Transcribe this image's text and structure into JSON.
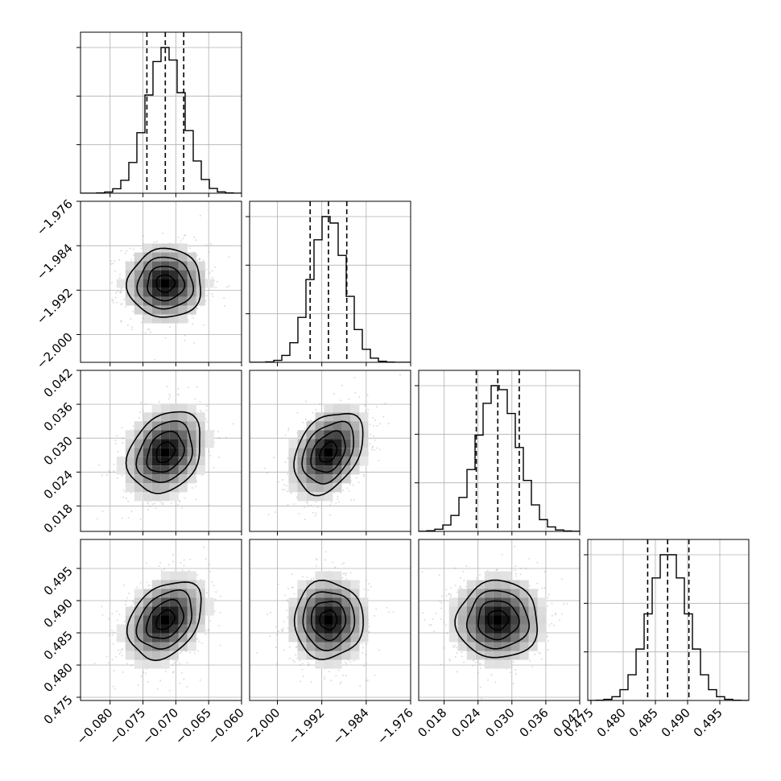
{
  "chart_data": {
    "type": "corner",
    "parameters": [
      {
        "mean": -0.0716,
        "sd": 0.0028,
        "range": [
          -0.0845,
          -0.06
        ],
        "ticks": [
          -0.08,
          -0.075,
          -0.07,
          -0.065,
          -0.06
        ],
        "tick_labels": [
          "−0.080",
          "−0.075",
          "−0.070",
          "−0.065",
          "−0.060"
        ],
        "quantiles": [
          -0.0744,
          -0.0716,
          -0.0688
        ]
      },
      {
        "mean": -1.9908,
        "sd": 0.0031,
        "range": [
          -2.005,
          -1.976
        ],
        "ticks": [
          -2.0,
          -1.992,
          -1.984,
          -1.976
        ],
        "tick_labels": [
          "−2.000",
          "−1.992",
          "−1.984",
          "−1.976"
        ],
        "quantiles": [
          -1.9941,
          -1.9908,
          -1.9875
        ]
      },
      {
        "mean": 0.0275,
        "sd": 0.0036,
        "range": [
          0.0135,
          0.042
        ],
        "ticks": [
          0.018,
          0.024,
          0.03,
          0.036,
          0.042
        ],
        "tick_labels": [
          "0.018",
          "0.024",
          "0.030",
          "0.036",
          "0.042"
        ],
        "quantiles": [
          0.0237,
          0.0275,
          0.0313
        ]
      },
      {
        "mean": 0.487,
        "sd": 0.003,
        "range": [
          0.4745,
          0.4995
        ],
        "ticks": [
          0.475,
          0.48,
          0.485,
          0.49,
          0.495
        ],
        "tick_labels": [
          "0.475",
          "0.480",
          "0.485",
          "0.490",
          "0.495"
        ],
        "quantiles": [
          0.4838,
          0.4869,
          0.4902
        ]
      }
    ],
    "correlations": [
      [
        1,
        0,
        0.25,
        0.32
      ],
      [
        0,
        1,
        0.35,
        0
      ],
      [
        0.25,
        0.35,
        1,
        0
      ],
      [
        0.32,
        0,
        0,
        1
      ]
    ],
    "contour_levels_sigma": [
      0.5,
      1.0,
      1.5,
      2.0
    ],
    "histogram_bins": 20,
    "grid": true,
    "colors": {
      "line": "#000000",
      "points": "#9a9a9a",
      "grid": "#b0b0b0"
    }
  }
}
